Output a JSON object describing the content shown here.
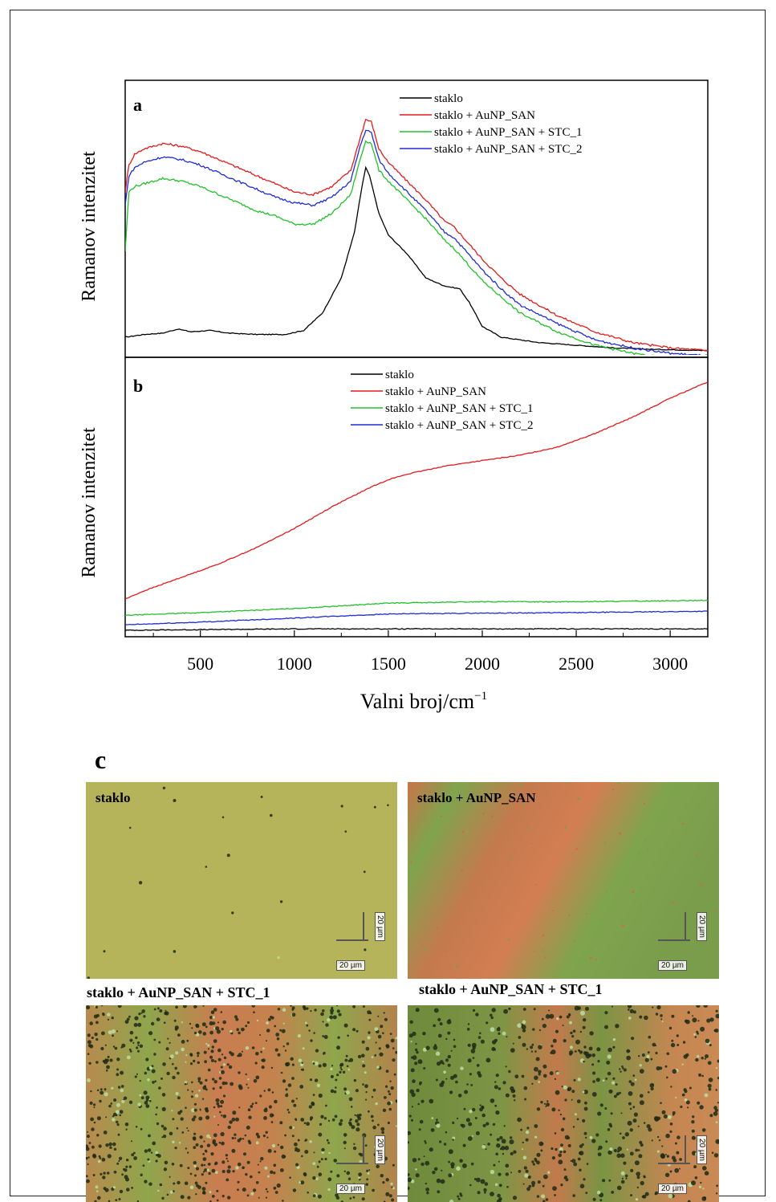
{
  "chart_data": [
    {
      "panel": "a",
      "type": "line",
      "ylabel": "Ramanov intenzitet",
      "xlim": [
        100,
        3200
      ],
      "ylim": [
        0,
        1
      ],
      "legend_position": "top-right",
      "series": [
        {
          "name": "staklo",
          "color": "#000000",
          "x": [
            100,
            200,
            300,
            380,
            450,
            550,
            650,
            800,
            950,
            1050,
            1150,
            1250,
            1320,
            1360,
            1380,
            1400,
            1450,
            1500,
            1600,
            1700,
            1800,
            1880,
            1930,
            2000,
            2100,
            2300,
            2500,
            2700,
            2900,
            3200
          ],
          "y": [
            0.06,
            0.07,
            0.075,
            0.09,
            0.08,
            0.085,
            0.075,
            0.07,
            0.07,
            0.085,
            0.15,
            0.28,
            0.45,
            0.62,
            0.69,
            0.66,
            0.52,
            0.44,
            0.37,
            0.28,
            0.25,
            0.24,
            0.19,
            0.1,
            0.06,
            0.04,
            0.03,
            0.02,
            0.015,
            0.01
          ]
        },
        {
          "name": "staklo + AuNP_SAN",
          "color": "#e41a1c",
          "x": [
            100,
            120,
            150,
            200,
            300,
            400,
            500,
            600,
            700,
            800,
            900,
            1000,
            1100,
            1200,
            1300,
            1350,
            1380,
            1410,
            1450,
            1500,
            1600,
            1700,
            1800,
            1850,
            1900,
            2000,
            2100,
            2200,
            2400,
            2600,
            2800,
            3000,
            3200
          ],
          "y": [
            0.6,
            0.7,
            0.74,
            0.76,
            0.78,
            0.77,
            0.75,
            0.72,
            0.69,
            0.66,
            0.63,
            0.6,
            0.59,
            0.62,
            0.68,
            0.8,
            0.87,
            0.86,
            0.76,
            0.71,
            0.64,
            0.57,
            0.49,
            0.47,
            0.43,
            0.35,
            0.28,
            0.22,
            0.14,
            0.08,
            0.04,
            0.02,
            0.01
          ]
        },
        {
          "name": "staklo + AuNP_SAN + STC_1",
          "color": "#22c02a",
          "x": [
            100,
            120,
            150,
            200,
            300,
            400,
            500,
            600,
            700,
            800,
            900,
            1000,
            1100,
            1200,
            1300,
            1350,
            1380,
            1410,
            1450,
            1500,
            1600,
            1700,
            1800,
            1850,
            1900,
            2000,
            2100,
            2200,
            2400,
            2600,
            2800,
            3000,
            3200
          ],
          "y": [
            0.38,
            0.6,
            0.62,
            0.63,
            0.65,
            0.64,
            0.62,
            0.59,
            0.56,
            0.53,
            0.51,
            0.48,
            0.48,
            0.52,
            0.59,
            0.72,
            0.79,
            0.78,
            0.68,
            0.64,
            0.57,
            0.5,
            0.42,
            0.39,
            0.35,
            0.27,
            0.21,
            0.15,
            0.08,
            0.03,
            0.0,
            -0.02,
            -0.03
          ]
        },
        {
          "name": "staklo + AuNP_SAN + STC_2",
          "color": "#1f2bd6",
          "x": [
            100,
            120,
            150,
            200,
            300,
            400,
            500,
            600,
            700,
            800,
            900,
            1000,
            1100,
            1200,
            1300,
            1350,
            1380,
            1410,
            1450,
            1500,
            1600,
            1700,
            1800,
            1850,
            1900,
            2000,
            2100,
            2200,
            2400,
            2600,
            2800,
            3000,
            3200
          ],
          "y": [
            0.55,
            0.66,
            0.69,
            0.71,
            0.73,
            0.72,
            0.7,
            0.67,
            0.64,
            0.61,
            0.58,
            0.56,
            0.55,
            0.58,
            0.64,
            0.77,
            0.83,
            0.82,
            0.72,
            0.67,
            0.6,
            0.53,
            0.45,
            0.43,
            0.39,
            0.31,
            0.24,
            0.18,
            0.11,
            0.05,
            0.02,
            0.0,
            -0.01
          ]
        }
      ]
    },
    {
      "panel": "b",
      "type": "line",
      "ylabel": "Ramanov intenzitet",
      "xlabel": "Valni broj/cm",
      "xlabel_sup": "−1",
      "xlim": [
        100,
        3200
      ],
      "ylim": [
        0,
        1
      ],
      "xticks": [
        500,
        1000,
        1500,
        2000,
        2500,
        3000
      ],
      "legend_position": "top-center",
      "series": [
        {
          "name": "staklo",
          "color": "#000000",
          "x": [
            100,
            1000,
            2000,
            3200
          ],
          "y": [
            0.015,
            0.02,
            0.02,
            0.02
          ]
        },
        {
          "name": "staklo + AuNP_SAN",
          "color": "#e41a1c",
          "x": [
            100,
            200,
            400,
            600,
            800,
            1000,
            1200,
            1400,
            1500,
            1600,
            1800,
            1900,
            2000,
            2200,
            2400,
            2600,
            2800,
            3000,
            3200
          ],
          "y": [
            0.13,
            0.16,
            0.21,
            0.26,
            0.32,
            0.39,
            0.47,
            0.54,
            0.57,
            0.59,
            0.62,
            0.63,
            0.64,
            0.66,
            0.69,
            0.74,
            0.8,
            0.87,
            0.93
          ]
        },
        {
          "name": "staklo + AuNP_SAN + STC_1",
          "color": "#22c02a",
          "x": [
            100,
            500,
            1000,
            1500,
            2000,
            2500,
            3200
          ],
          "y": [
            0.07,
            0.08,
            0.095,
            0.115,
            0.12,
            0.12,
            0.125
          ]
        },
        {
          "name": "staklo + AuNP_SAN + STC_2",
          "color": "#1f2bd6",
          "x": [
            100,
            500,
            1000,
            1500,
            2000,
            2500,
            3200
          ],
          "y": [
            0.035,
            0.045,
            0.06,
            0.075,
            0.078,
            0.08,
            0.085
          ]
        }
      ]
    }
  ],
  "panel_a_label": "a",
  "panel_b_label": "b",
  "panel_c": {
    "label": "c",
    "images": [
      {
        "label": "staklo",
        "scale_h": "20 µm",
        "scale_v": "20 µm",
        "background": "#b5b358"
      },
      {
        "label": "staklo + AuNP_SAN",
        "scale_h": "20 µm",
        "scale_v": "20 µm",
        "background": "#7fa44e"
      },
      {
        "label": "staklo + AuNP_SAN + STC_1",
        "scale_h": "20 µm",
        "scale_v": "20 µm",
        "background": "#8aa14a"
      },
      {
        "label": "staklo + AuNP_SAN + STC_1",
        "scale_h": "20 µm",
        "scale_v": "20 µm",
        "background": "#6f8a3c"
      }
    ]
  }
}
